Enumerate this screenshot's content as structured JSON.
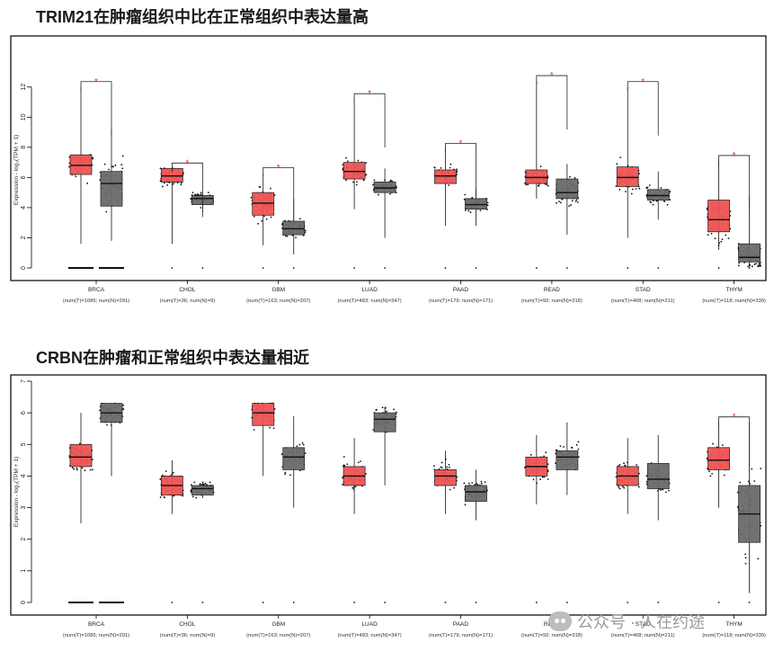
{
  "charts_text": {
    "title1": "TRIM21在肿瘤组织中比在正常组织中表达量高",
    "title2": "CRBN在肿瘤和正常组织中表达量相近",
    "watermark": "公众号 · 人在约途"
  },
  "colors": {
    "tumor": "#f05454",
    "normal": "#6b6b6b",
    "sig": "#e8322f"
  },
  "chart_data": [
    {
      "type": "box",
      "title": "TRIM21在肿瘤组织中比在正常组织中表达量高",
      "ylabel": "Expression - log₂(TPM + 1)",
      "ylim": [
        0,
        13
      ],
      "yticks": [
        0,
        2,
        4,
        6,
        8,
        10,
        12
      ],
      "categories": [
        "BRCA",
        "CHOL",
        "GBM",
        "LUAD",
        "PAAD",
        "READ",
        "STAD",
        "THYM"
      ],
      "sample_labels": [
        "(num(T)=1085; num(N)=291)",
        "(num(T)=36; num(N)=9)",
        "(num(T)=163; num(N)=207)",
        "(num(T)=483; num(N)=347)",
        "(num(T)=179; num(N)=171)",
        "(num(T)=92; num(N)=318)",
        "(num(T)=408; num(N)=211)",
        "(num(T)=118; num(N)=339)"
      ],
      "series": [
        {
          "name": "T",
          "boxes": [
            [
              6.2,
              6.8,
              7.5
            ],
            [
              5.7,
              6.1,
              6.6
            ],
            [
              3.5,
              4.3,
              5.0
            ],
            [
              5.9,
              6.4,
              7.0
            ],
            [
              5.6,
              6.1,
              6.5
            ],
            [
              5.6,
              6.0,
              6.5
            ],
            [
              5.4,
              6.0,
              6.7
            ],
            [
              2.4,
              3.2,
              4.5
            ]
          ],
          "whiskers": [
            [
              1.6,
              12.0
            ],
            [
              1.6,
              6.6
            ],
            [
              1.5,
              6.3
            ],
            [
              3.9,
              11.2
            ],
            [
              2.8,
              7.9
            ],
            [
              4.6,
              12.4
            ],
            [
              2.0,
              12.0
            ],
            [
              1.2,
              7.1
            ]
          ],
          "flat_zero_line": [
            true,
            false,
            false,
            false,
            false,
            false,
            false,
            false
          ]
        },
        {
          "name": "N",
          "boxes": [
            [
              4.1,
              5.6,
              6.4
            ],
            [
              4.2,
              4.6,
              4.8
            ],
            [
              2.2,
              2.6,
              3.1
            ],
            [
              5.0,
              5.3,
              5.7
            ],
            [
              3.9,
              4.2,
              4.6
            ],
            [
              4.6,
              5.0,
              5.9
            ],
            [
              4.5,
              4.8,
              5.2
            ],
            [
              0.4,
              0.7,
              1.6
            ]
          ],
          "whiskers": [
            [
              1.8,
              9.2
            ],
            [
              3.7,
              5.0
            ],
            [
              0.9,
              4.6
            ],
            [
              2.0,
              6.6
            ],
            [
              2.8,
              5.3
            ],
            [
              2.2,
              6.9
            ],
            [
              3.2,
              6.4
            ],
            [
              0.1,
              4.7
            ]
          ],
          "flat_zero_line": [
            true,
            false,
            false,
            false,
            false,
            false,
            false,
            false
          ]
        }
      ],
      "significance": [
        "*",
        "*",
        "*",
        "*",
        "*",
        "*",
        "*",
        "*"
      ],
      "grid": false,
      "legend": "none"
    },
    {
      "type": "box",
      "title": "CRBN在肿瘤和正常组织中表达量相近",
      "ylabel": "Expression - log₂(TPM + 1)",
      "ylim": [
        0,
        7
      ],
      "yticks": [
        0,
        1,
        2,
        3,
        4,
        5,
        6,
        7
      ],
      "categories": [
        "BRCA",
        "CHOL",
        "GBM",
        "LUAD",
        "PAAD",
        "READ",
        "STAD",
        "THYM"
      ],
      "sample_labels": [
        "(num(T)=1085; num(N)=291)",
        "(num(T)=36; num(N)=9)",
        "(num(T)=163; num(N)=207)",
        "(num(T)=483; num(N)=347)",
        "(num(T)=179; num(N)=171)",
        "(num(T)=92; num(N)=318)",
        "(num(T)=408; num(N)=211)",
        "(num(T)=118; num(N)=339)"
      ],
      "series": [
        {
          "name": "T",
          "boxes": [
            [
              4.3,
              4.6,
              5.0
            ],
            [
              3.4,
              3.7,
              4.0
            ],
            [
              5.6,
              6.0,
              6.3
            ],
            [
              3.7,
              4.0,
              4.3
            ],
            [
              3.7,
              4.0,
              4.2
            ],
            [
              4.0,
              4.3,
              4.6
            ],
            [
              3.7,
              4.0,
              4.3
            ],
            [
              4.2,
              4.5,
              4.9
            ]
          ],
          "whiskers": [
            [
              2.5,
              6.0
            ],
            [
              2.8,
              4.5
            ],
            [
              4.0,
              6.3
            ],
            [
              2.8,
              5.2
            ],
            [
              2.8,
              4.8
            ],
            [
              3.1,
              5.3
            ],
            [
              2.8,
              5.2
            ],
            [
              3.0,
              5.7
            ]
          ],
          "flat_zero_line": [
            true,
            false,
            false,
            false,
            false,
            false,
            false,
            false
          ]
        },
        {
          "name": "N",
          "boxes": [
            [
              5.7,
              6.0,
              6.3
            ],
            [
              3.4,
              3.6,
              3.7
            ],
            [
              4.2,
              4.6,
              4.9
            ],
            [
              5.4,
              5.8,
              6.0
            ],
            [
              3.2,
              3.5,
              3.7
            ],
            [
              4.2,
              4.6,
              4.8
            ],
            [
              3.6,
              3.9,
              4.4
            ],
            [
              1.9,
              2.8,
              3.7
            ]
          ],
          "whiskers": [
            [
              4.0,
              6.3
            ],
            [
              3.3,
              3.8
            ],
            [
              3.0,
              5.9
            ],
            [
              3.7,
              6.2
            ],
            [
              2.6,
              4.2
            ],
            [
              3.4,
              5.7
            ],
            [
              2.6,
              5.3
            ],
            [
              0.3,
              5.7
            ]
          ],
          "flat_zero_line": [
            true,
            false,
            false,
            false,
            false,
            false,
            false,
            false
          ]
        }
      ],
      "significance": [
        "",
        "",
        "",
        "",
        "",
        "",
        "",
        "*"
      ],
      "grid": false,
      "legend": "none"
    }
  ]
}
